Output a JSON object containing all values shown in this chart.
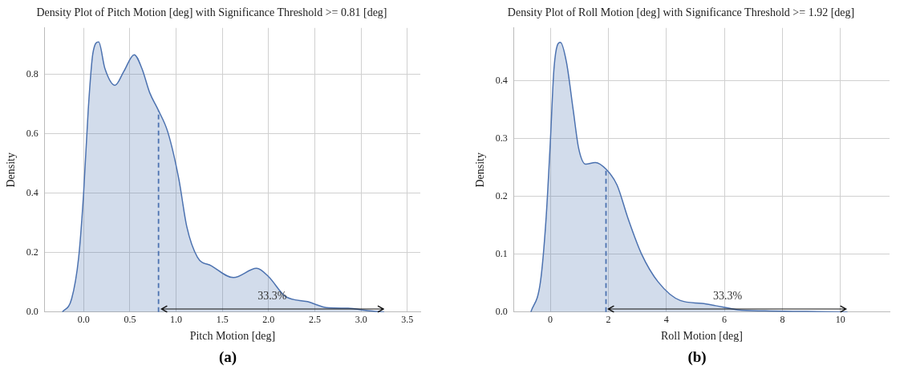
{
  "chart_data": [
    {
      "type": "area",
      "title": "Density Plot of Pitch Motion [deg] with Significance Threshold >= 0.81 [deg]",
      "xlabel": "Pitch Motion [deg]",
      "ylabel": "Density",
      "x": [
        -0.23,
        -0.13,
        -0.053,
        0,
        0.05,
        0.1,
        0.163,
        0.23,
        0.34,
        0.435,
        0.547,
        0.63,
        0.716,
        0.805,
        0.91,
        1.03,
        1.115,
        1.23,
        1.38,
        1.62,
        1.87,
        2.0,
        2.18,
        2.42,
        2.65,
        2.86,
        3.07,
        3.25
      ],
      "series": [
        {
          "color": "#4c72b0",
          "values": [
            0,
            0.044,
            0.185,
            0.4,
            0.68,
            0.87,
            0.909,
            0.82,
            0.763,
            0.81,
            0.866,
            0.82,
            0.737,
            0.681,
            0.606,
            0.447,
            0.288,
            0.185,
            0.156,
            0.116,
            0.147,
            0.119,
            0.053,
            0.035,
            0.014,
            0.013,
            0.005,
            0
          ]
        }
      ],
      "xlim": [
        -0.42,
        3.64
      ],
      "ylim": [
        0,
        0.956
      ],
      "xticks": [
        {
          "value": 0,
          "label": "0.0"
        },
        {
          "value": 0.5,
          "label": "0.5"
        },
        {
          "value": 1,
          "label": "1.0"
        },
        {
          "value": 1.5,
          "label": "1.5"
        },
        {
          "value": 2,
          "label": "2.0"
        },
        {
          "value": 2.5,
          "label": "2.5"
        },
        {
          "value": 3,
          "label": "3.0"
        },
        {
          "value": 3.5,
          "label": "3.5"
        }
      ],
      "yticks": [
        {
          "value": 0,
          "label": "0.0"
        },
        {
          "value": 0.2,
          "label": "0.2"
        },
        {
          "value": 0.4,
          "label": "0.4"
        },
        {
          "value": 0.6,
          "label": "0.6"
        },
        {
          "value": 0.8,
          "label": "0.8"
        }
      ],
      "ref_lines": [
        {
          "axis": "x",
          "value": 0.81,
          "color": "#4c72b0",
          "line_style": "dashed"
        }
      ],
      "annotations": [
        "33.3%",
        "(a)"
      ],
      "grid": true,
      "legend": false,
      "marker": "none"
    },
    {
      "type": "area",
      "title": "Density Plot of Roll Motion [deg] with Significance Threshold >= 1.92 [deg]",
      "xlabel": "Roll Motion [deg]",
      "ylabel": "Density",
      "x": [
        -0.67,
        -0.34,
        -0.15,
        0,
        0.13,
        0.35,
        0.56,
        0.79,
        0.98,
        1.22,
        1.55,
        1.93,
        2.3,
        2.68,
        3.15,
        3.72,
        4.48,
        5.23,
        5.7,
        6.46,
        7.4,
        8.82,
        10.24
      ],
      "series": [
        {
          "color": "#4c72b0",
          "values": [
            0,
            0.052,
            0.158,
            0.293,
            0.423,
            0.467,
            0.432,
            0.35,
            0.283,
            0.256,
            0.259,
            0.247,
            0.22,
            0.162,
            0.1,
            0.052,
            0.02,
            0.015,
            0.011,
            0.004,
            0.002,
            0.001,
            0
          ]
        }
      ],
      "xlim": [
        -1.25,
        11.69
      ],
      "ylim": [
        0,
        0.492
      ],
      "xticks": [
        0,
        2,
        4,
        6,
        8,
        10
      ],
      "yticks": [
        {
          "value": 0,
          "label": "0.0"
        },
        {
          "value": 0.1,
          "label": "0.1"
        },
        {
          "value": 0.2,
          "label": "0.2"
        },
        {
          "value": 0.3,
          "label": "0.3"
        },
        {
          "value": 0.4,
          "label": "0.4"
        }
      ],
      "ref_lines": [
        {
          "axis": "x",
          "value": 1.92,
          "color": "#4c72b0",
          "line_style": "dashed"
        }
      ],
      "annotations": [
        "33.3%",
        "(b)"
      ],
      "grid": true,
      "legend": false,
      "marker": "none"
    }
  ]
}
